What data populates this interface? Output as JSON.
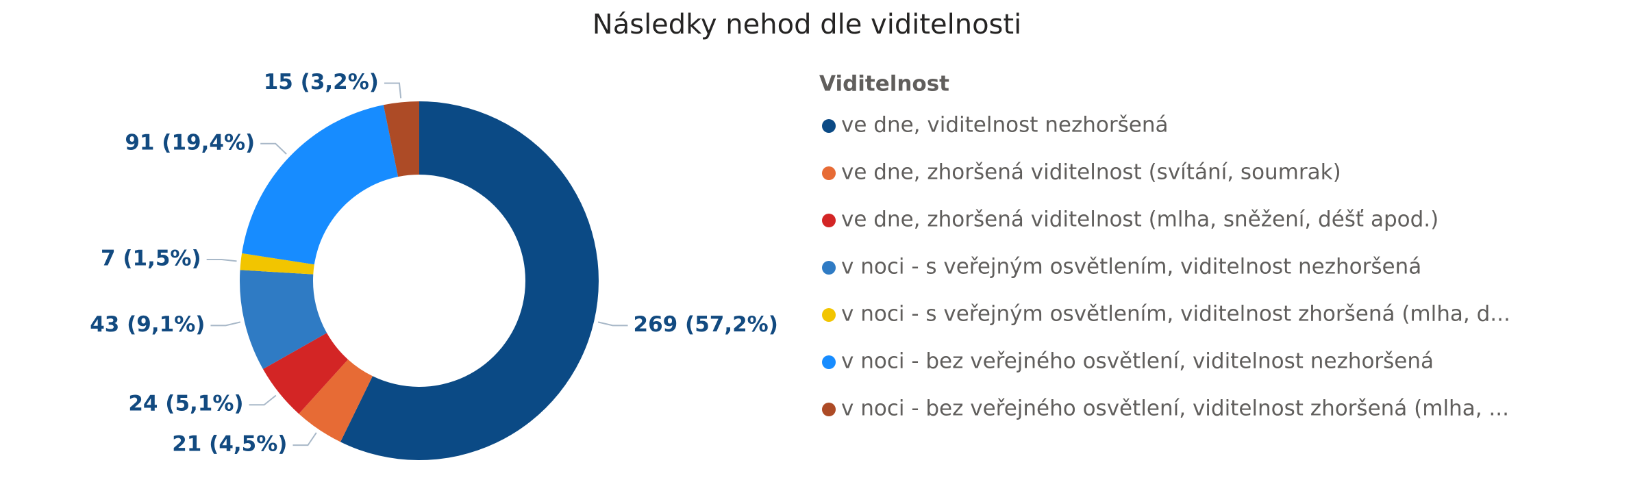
{
  "chart_data": {
    "type": "pie",
    "donut": true,
    "title": "Následky nehod dle viditelnosti",
    "legend_title": "Viditelnost",
    "categories": [
      "ve dne, viditelnost nezhoršená",
      "ve dne, zhoršená viditelnost (svítání, soumrak)",
      "ve dne, zhoršená viditelnost (mlha, sněžení, déšť apod.)",
      "v noci - s veřejným osvětlením, viditelnost nezhoršená",
      "v noci - s veřejným osvětlením, viditelnost zhoršená (mlha, d...",
      "v noci - bez veřejného osvětlení, viditelnost nezhoršená",
      "v noci - bez veřejného osvětlení, viditelnost zhoršená (mlha, ..."
    ],
    "values": [
      269,
      21,
      24,
      43,
      7,
      91,
      15
    ],
    "value_labels": [
      "269 (57,2%)",
      "21 (4,5%)",
      "24 (5,1%)",
      "43 (9,1%)",
      "7 (1,5%)",
      "91 (19,4%)",
      "15 (3,2%)"
    ],
    "colors": [
      "#0b4a85",
      "#e76b35",
      "#d32525",
      "#2f7bc4",
      "#f2c500",
      "#178cff",
      "#ad4b26"
    ],
    "legend": "right"
  }
}
